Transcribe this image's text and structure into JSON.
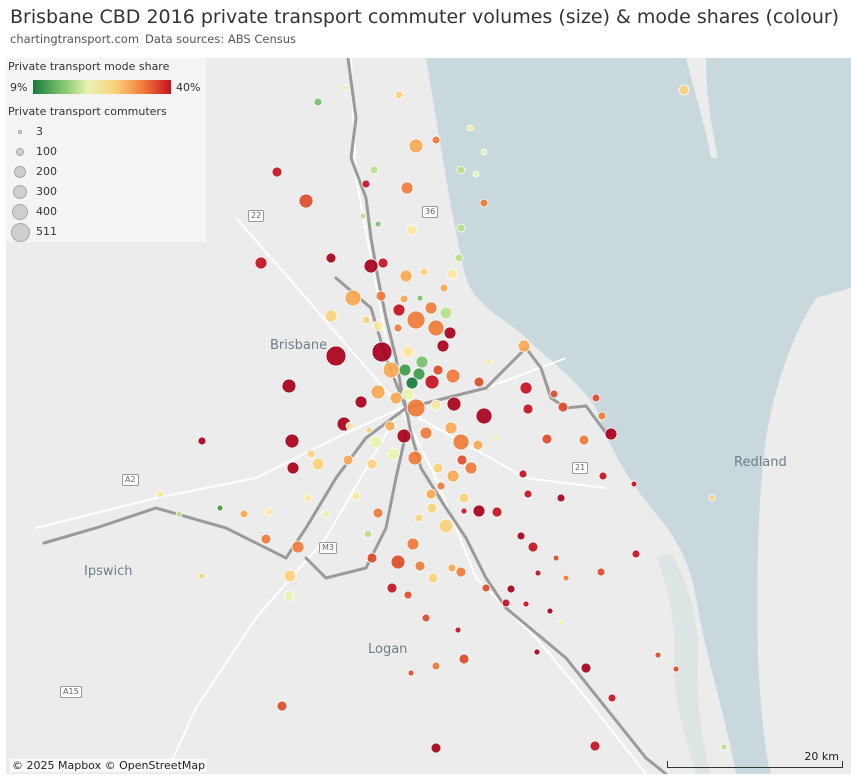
{
  "header": {
    "title": "Brisbane CBD 2016 private transport commuter volumes (size) & mode shares (colour)",
    "site": "chartingtransport.com",
    "sources": "Data sources: ABS Census"
  },
  "legend": {
    "color_title": "Private transport mode share",
    "color_min": "9%",
    "color_max": "40%",
    "size_title": "Private transport commuters",
    "sizes": [
      {
        "label": "3",
        "value": 3
      },
      {
        "label": "100",
        "value": 100
      },
      {
        "label": "200",
        "value": 200
      },
      {
        "label": "300",
        "value": 300
      },
      {
        "label": "400",
        "value": 400
      },
      {
        "label": "511",
        "value": 511
      }
    ]
  },
  "places": {
    "brisbane": "Brisbane",
    "ipswich": "Ipswich",
    "logan": "Logan",
    "redland": "Redland"
  },
  "road_shields": [
    "22",
    "A2",
    "M3",
    "21",
    "A15",
    "36"
  ],
  "attribution": "© 2025 Mapbox © OpenStreetMap",
  "scale_label": "20 km",
  "colors": {
    "water": "#c9d8dc",
    "land": "#ececec",
    "rail": "#9a9a9a",
    "low_share": "#1a7a3a",
    "high_share": "#c8101f"
  }
}
